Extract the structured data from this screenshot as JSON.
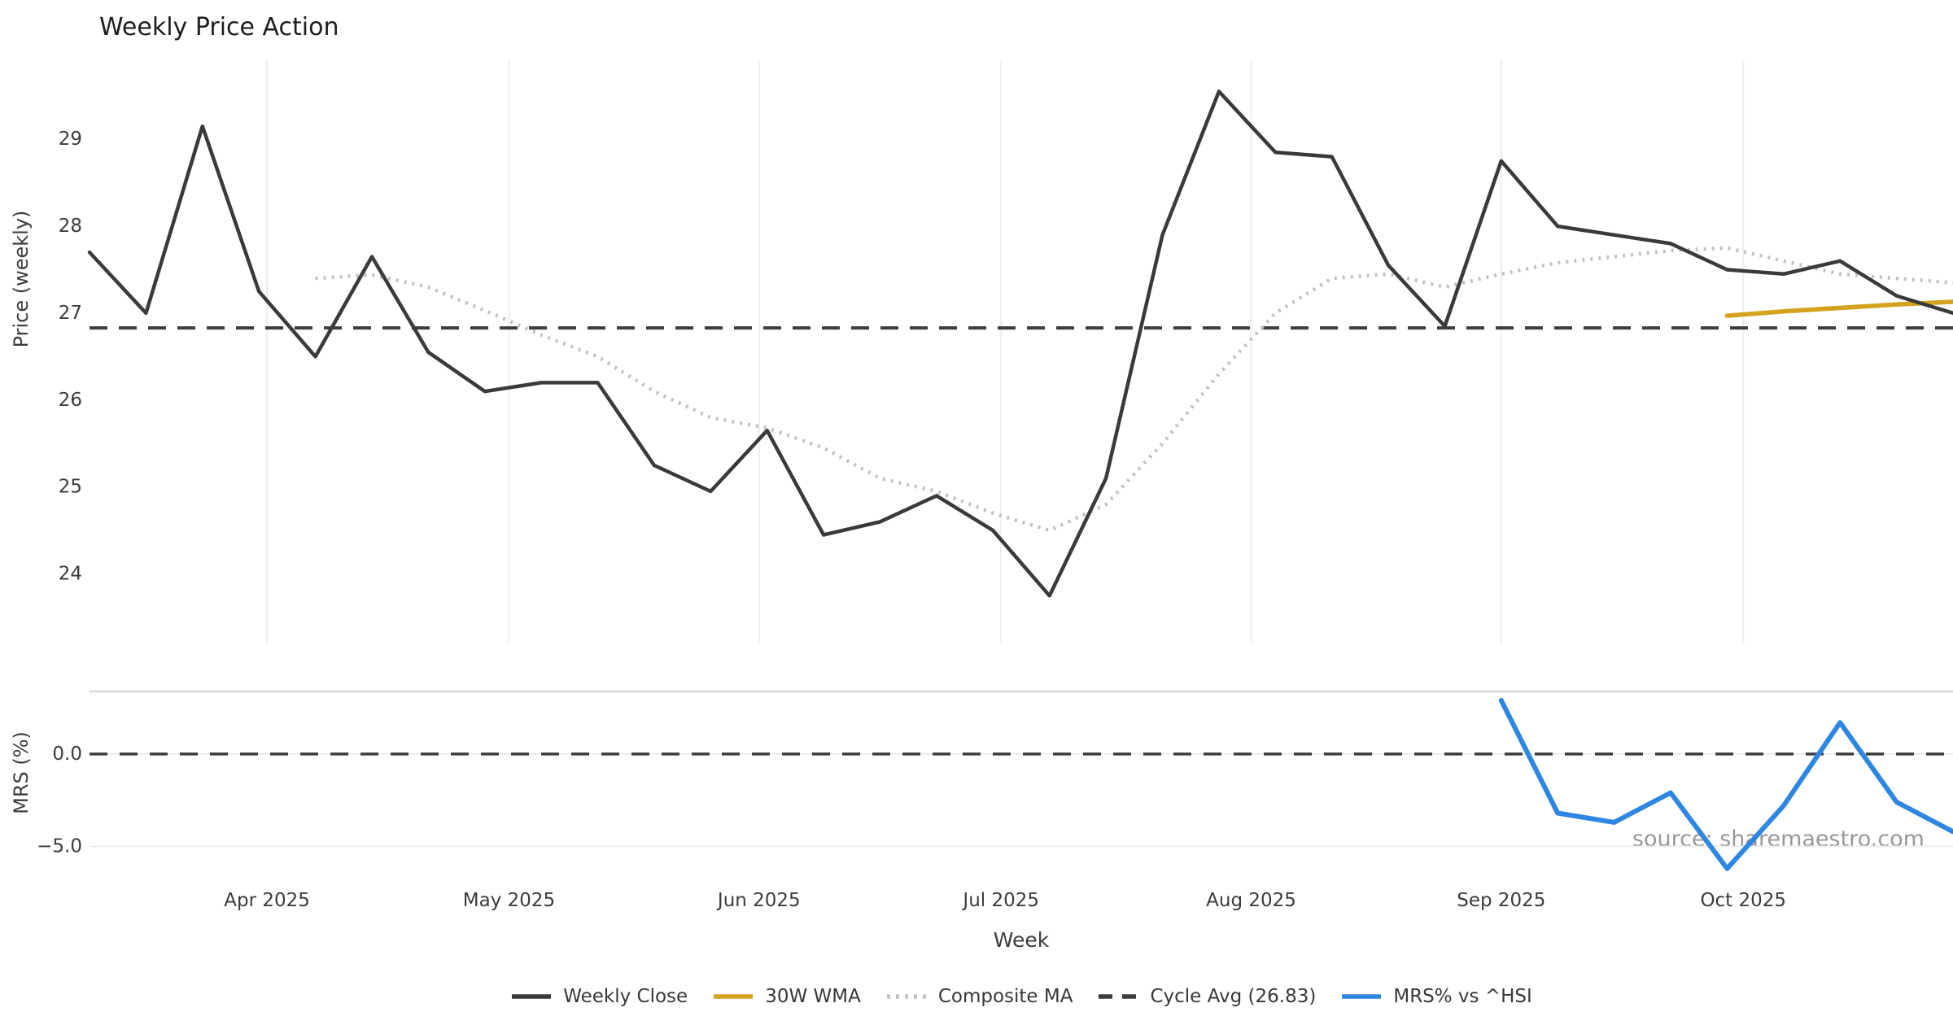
{
  "chart": {
    "title": "Weekly Price Action",
    "watermark": "source: sharemaestro.com",
    "x_axis": {
      "title": "Week",
      "tick_labels": [
        "Apr 2025",
        "May 2025",
        "Jun 2025",
        "Jul 2025",
        "Aug 2025",
        "Sep 2025",
        "Oct 2025"
      ],
      "tick_dates": [
        "2025-04-01",
        "2025-05-01",
        "2025-06-01",
        "2025-07-01",
        "2025-08-01",
        "2025-09-01",
        "2025-10-01"
      ]
    },
    "panel_price": {
      "y_title": "Price (weekly)",
      "ytick_values": [
        24,
        25,
        26,
        27,
        28,
        29
      ],
      "ytick_labels": [
        "24",
        "25",
        "26",
        "27",
        "28",
        "29"
      ]
    },
    "panel_mrs": {
      "y_title": "MRS (%)",
      "ytick_values": [
        0,
        -5
      ],
      "ytick_labels": [
        "0.0",
        "−5.0"
      ]
    },
    "colors": {
      "weekly_close": "#3a3a3a",
      "wma_30w": "#d4a21c",
      "composite_ma": "#c2c2c2",
      "cycle_avg": "#3d3d3d",
      "mrs": "#2d87e2",
      "gridline": "#ededed",
      "panel_border": "#d8d8d8",
      "text": "#3c3c3c",
      "watermark": "#989898"
    }
  },
  "chart_data": {
    "type": "line",
    "title": "Weekly Price Action",
    "xlabel": "Week",
    "ylabel_top": "Price (weekly)",
    "ylabel_bottom": "MRS (%)",
    "legend_position": "bottom-center",
    "grid": "vertical-months-only",
    "x_dates": [
      "2025-03-10",
      "2025-03-17",
      "2025-03-24",
      "2025-03-31",
      "2025-04-07",
      "2025-04-14",
      "2025-04-21",
      "2025-04-28",
      "2025-05-05",
      "2025-05-12",
      "2025-05-19",
      "2025-05-26",
      "2025-06-02",
      "2025-06-09",
      "2025-06-16",
      "2025-06-23",
      "2025-06-30",
      "2025-07-07",
      "2025-07-14",
      "2025-07-21",
      "2025-07-28",
      "2025-08-04",
      "2025-08-11",
      "2025-08-18",
      "2025-08-25",
      "2025-09-01",
      "2025-09-08",
      "2025-09-15",
      "2025-09-22",
      "2025-09-29",
      "2025-10-06",
      "2025-10-13",
      "2025-10-20",
      "2025-10-27"
    ],
    "ylim_price": [
      23.21,
      29.9
    ],
    "ylim_mrs": [
      -6.52,
      3.38
    ],
    "series": [
      {
        "name": "Weekly Close",
        "panel": "price",
        "style": "solid",
        "color_key": "weekly_close",
        "start_index": 0,
        "values": [
          27.7,
          27.0,
          29.15,
          27.25,
          26.5,
          27.65,
          26.55,
          26.1,
          26.2,
          26.2,
          25.25,
          24.95,
          25.65,
          24.45,
          24.6,
          24.9,
          24.5,
          23.75,
          25.1,
          27.9,
          29.55,
          28.85,
          28.8,
          27.55,
          26.85,
          28.75,
          28.0,
          27.9,
          27.8,
          27.5,
          27.45,
          27.6,
          27.2,
          27.0
        ]
      },
      {
        "name": "30W WMA",
        "panel": "price",
        "style": "solid",
        "color_key": "wma_30w",
        "start_index": 29,
        "values": [
          26.97,
          27.02,
          27.06,
          27.1,
          27.13
        ]
      },
      {
        "name": "Composite MA",
        "panel": "price",
        "style": "dotted",
        "color_key": "composite_ma",
        "start_index": 4,
        "values": [
          27.4,
          27.44,
          27.3,
          27.03,
          26.75,
          26.5,
          26.1,
          25.8,
          25.68,
          25.45,
          25.1,
          24.95,
          24.7,
          24.5,
          24.8,
          25.5,
          26.3,
          27.0,
          27.4,
          27.45,
          27.3,
          27.45,
          27.58,
          27.65,
          27.72,
          27.75,
          27.6,
          27.45,
          27.4,
          27.35
        ]
      },
      {
        "name": "Cycle Avg (26.83)",
        "panel": "price",
        "style": "dashed",
        "color_key": "cycle_avg",
        "constant": 26.83
      },
      {
        "name": "MRS% vs ^HSI",
        "panel": "mrs",
        "style": "solid",
        "color_key": "mrs",
        "start_index": 25,
        "values": [
          2.9,
          -3.2,
          -3.7,
          -2.1,
          -6.2,
          -2.8,
          1.7,
          -2.6,
          -4.2
        ]
      }
    ]
  }
}
